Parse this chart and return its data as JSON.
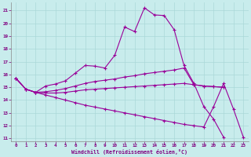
{
  "xlabel": "Windchill (Refroidissement éolien,°C)",
  "bg_color": "#c8ecec",
  "line_color": "#990099",
  "grid_color": "#aad8d8",
  "xlim": [
    -0.5,
    23.5
  ],
  "ylim": [
    10.8,
    21.6
  ],
  "yticks": [
    11,
    12,
    13,
    14,
    15,
    16,
    17,
    18,
    19,
    20,
    21
  ],
  "xticks": [
    0,
    1,
    2,
    3,
    4,
    5,
    6,
    7,
    8,
    9,
    10,
    11,
    12,
    13,
    14,
    15,
    16,
    17,
    18,
    19,
    20,
    21,
    22,
    23
  ],
  "line1_x": [
    0,
    1,
    2,
    3,
    4,
    5,
    6,
    7,
    8,
    9,
    10,
    11,
    12,
    13,
    14,
    15,
    16,
    17,
    18,
    19,
    20,
    21
  ],
  "line1_y": [
    15.7,
    14.85,
    14.6,
    15.1,
    15.25,
    15.5,
    16.1,
    16.7,
    16.65,
    16.5,
    17.5,
    19.7,
    19.35,
    21.2,
    20.65,
    20.6,
    19.5,
    16.7,
    15.3,
    13.5,
    12.5,
    11.1
  ],
  "line2_x": [
    0,
    1,
    2,
    3,
    4,
    5,
    6,
    7,
    8,
    9,
    10,
    11,
    12,
    13,
    14,
    15,
    16,
    17,
    18,
    19,
    20,
    21
  ],
  "line2_y": [
    15.7,
    14.85,
    14.6,
    14.65,
    14.75,
    14.9,
    15.1,
    15.3,
    15.45,
    15.55,
    15.65,
    15.8,
    15.9,
    16.05,
    16.15,
    16.25,
    16.35,
    16.5,
    15.2,
    15.1,
    15.05,
    15.0
  ],
  "line3_x": [
    0,
    1,
    2,
    3,
    4,
    5,
    6,
    7,
    8,
    9,
    10,
    11,
    12,
    13,
    14,
    15,
    16,
    17,
    18,
    19,
    20,
    21
  ],
  "line3_y": [
    15.7,
    14.85,
    14.6,
    14.55,
    14.55,
    14.6,
    14.7,
    14.8,
    14.85,
    14.9,
    14.95,
    15.0,
    15.05,
    15.1,
    15.15,
    15.2,
    15.25,
    15.3,
    15.2,
    15.1,
    15.05,
    15.0
  ],
  "line4_x": [
    0,
    1,
    2,
    3,
    4,
    5,
    6,
    7,
    8,
    9,
    10,
    11,
    12,
    13,
    14,
    15,
    16,
    17,
    18,
    19,
    20,
    21,
    22,
    23
  ],
  "line4_y": [
    15.7,
    14.85,
    14.6,
    14.4,
    14.2,
    14.0,
    13.8,
    13.6,
    13.45,
    13.3,
    13.15,
    13.0,
    12.85,
    12.7,
    12.55,
    12.4,
    12.25,
    12.1,
    12.0,
    11.9,
    13.5,
    15.3,
    13.3,
    11.1
  ]
}
